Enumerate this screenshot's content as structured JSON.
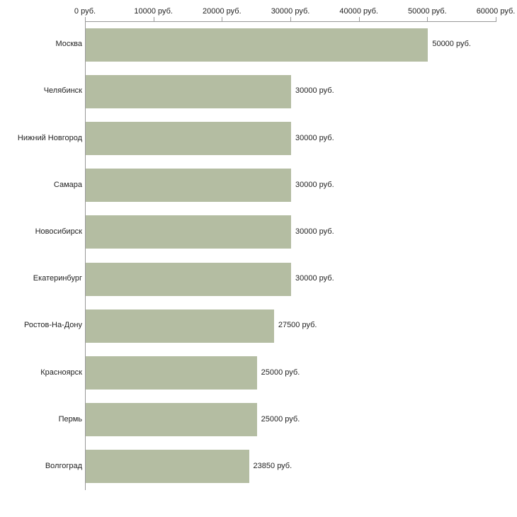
{
  "chart_data": {
    "type": "bar",
    "orientation": "horizontal",
    "title": "",
    "categories": [
      "Москва",
      "Челябинск",
      "Нижний Новгород",
      "Самара",
      "Новосибирск",
      "Екатеринбург",
      "Ростов-На-Дону",
      "Красноярск",
      "Пермь",
      "Волгоград"
    ],
    "values": [
      50000,
      30000,
      30000,
      30000,
      30000,
      30000,
      27500,
      25000,
      25000,
      23850
    ],
    "value_labels": [
      "50000 руб.",
      "30000 руб.",
      "30000 руб.",
      "30000 руб.",
      "30000 руб.",
      "30000 руб.",
      "27500 руб.",
      "25000 руб.",
      "25000 руб.",
      "23850 руб."
    ],
    "x_ticks": [
      0,
      10000,
      20000,
      30000,
      40000,
      50000,
      60000
    ],
    "x_tick_labels": [
      "0 руб.",
      "10000 руб.",
      "20000 руб.",
      "30000 руб.",
      "40000 руб.",
      "50000 руб.",
      "60000 руб."
    ],
    "xlim": [
      0,
      60000
    ],
    "xlabel": "",
    "ylabel": "",
    "grid": false,
    "legend": false,
    "bar_color": "#b4bda2",
    "axis_color": "#989898",
    "text_color": "#222222",
    "background_color": "#ffffff"
  }
}
